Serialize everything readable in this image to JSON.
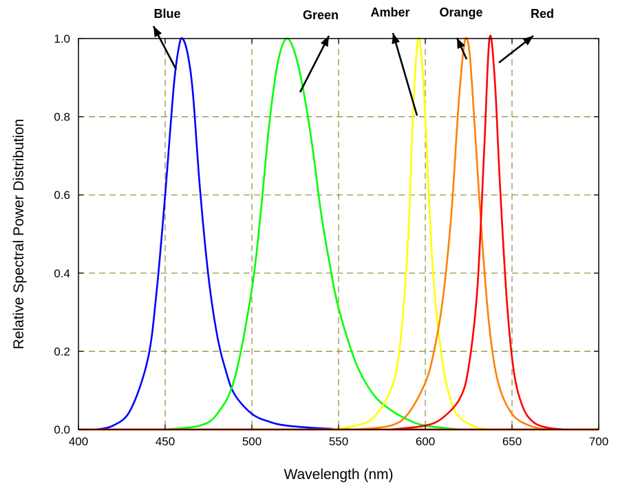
{
  "chart_data": {
    "type": "line",
    "title": "",
    "xlabel": "Wavelength (nm)",
    "ylabel": "Relative Spectral Power Distribution",
    "xlim": [
      400,
      700
    ],
    "ylim": [
      0.0,
      1.0
    ],
    "x_ticks": [
      "400",
      "450",
      "500",
      "550",
      "600",
      "650",
      "700"
    ],
    "y_ticks": [
      "0.0",
      "0.2",
      "0.4",
      "0.6",
      "0.8",
      "1.0"
    ],
    "grid": "dashed at x = 450, 500, 550, 600, 650 and y = 0.2, 0.4, 0.6, 0.8",
    "series": [
      {
        "name": "Blue",
        "color": "#0000ff",
        "points": [
          [
            410,
            0.0
          ],
          [
            420,
            0.01
          ],
          [
            430,
            0.05
          ],
          [
            440,
            0.18
          ],
          [
            445,
            0.35
          ],
          [
            450,
            0.6
          ],
          [
            455,
            0.88
          ],
          [
            458,
            0.98
          ],
          [
            460,
            1.0
          ],
          [
            463,
            0.96
          ],
          [
            466,
            0.86
          ],
          [
            470,
            0.62
          ],
          [
            475,
            0.39
          ],
          [
            480,
            0.24
          ],
          [
            485,
            0.15
          ],
          [
            490,
            0.09
          ],
          [
            500,
            0.04
          ],
          [
            510,
            0.02
          ],
          [
            520,
            0.01
          ],
          [
            540,
            0.003
          ],
          [
            560,
            0.0
          ]
        ]
      },
      {
        "name": "Green",
        "color": "#00ff00",
        "points": [
          [
            450,
            0.0
          ],
          [
            470,
            0.01
          ],
          [
            480,
            0.04
          ],
          [
            490,
            0.13
          ],
          [
            500,
            0.36
          ],
          [
            505,
            0.55
          ],
          [
            510,
            0.78
          ],
          [
            515,
            0.94
          ],
          [
            520,
            1.0
          ],
          [
            525,
            0.96
          ],
          [
            530,
            0.86
          ],
          [
            535,
            0.72
          ],
          [
            540,
            0.55
          ],
          [
            545,
            0.42
          ],
          [
            550,
            0.31
          ],
          [
            560,
            0.17
          ],
          [
            570,
            0.09
          ],
          [
            580,
            0.05
          ],
          [
            590,
            0.025
          ],
          [
            600,
            0.01
          ],
          [
            620,
            0.0
          ]
        ]
      },
      {
        "name": "Amber",
        "color": "#ffff00",
        "points": [
          [
            545,
            0.0
          ],
          [
            560,
            0.01
          ],
          [
            570,
            0.03
          ],
          [
            580,
            0.1
          ],
          [
            585,
            0.2
          ],
          [
            590,
            0.48
          ],
          [
            593,
            0.82
          ],
          [
            596,
            1.0
          ],
          [
            599,
            0.88
          ],
          [
            602,
            0.6
          ],
          [
            605,
            0.37
          ],
          [
            610,
            0.17
          ],
          [
            615,
            0.07
          ],
          [
            620,
            0.03
          ],
          [
            630,
            0.005
          ],
          [
            640,
            0.0
          ]
        ]
      },
      {
        "name": "Orange",
        "color": "#ff8000",
        "points": [
          [
            560,
            0.0
          ],
          [
            580,
            0.01
          ],
          [
            590,
            0.04
          ],
          [
            600,
            0.12
          ],
          [
            605,
            0.2
          ],
          [
            610,
            0.33
          ],
          [
            615,
            0.55
          ],
          [
            619,
            0.82
          ],
          [
            622,
            0.97
          ],
          [
            624,
            1.0
          ],
          [
            626,
            0.94
          ],
          [
            629,
            0.74
          ],
          [
            633,
            0.47
          ],
          [
            637,
            0.26
          ],
          [
            642,
            0.12
          ],
          [
            650,
            0.04
          ],
          [
            660,
            0.01
          ],
          [
            670,
            0.0
          ]
        ]
      },
      {
        "name": "Red",
        "color": "#ff0000",
        "points": [
          [
            580,
            0.0
          ],
          [
            600,
            0.01
          ],
          [
            610,
            0.03
          ],
          [
            620,
            0.08
          ],
          [
            625,
            0.16
          ],
          [
            630,
            0.36
          ],
          [
            634,
            0.72
          ],
          [
            637,
            1.0
          ],
          [
            640,
            0.9
          ],
          [
            643,
            0.63
          ],
          [
            647,
            0.33
          ],
          [
            651,
            0.15
          ],
          [
            656,
            0.06
          ],
          [
            662,
            0.02
          ],
          [
            670,
            0.005
          ],
          [
            680,
            0.0
          ]
        ]
      }
    ]
  }
}
